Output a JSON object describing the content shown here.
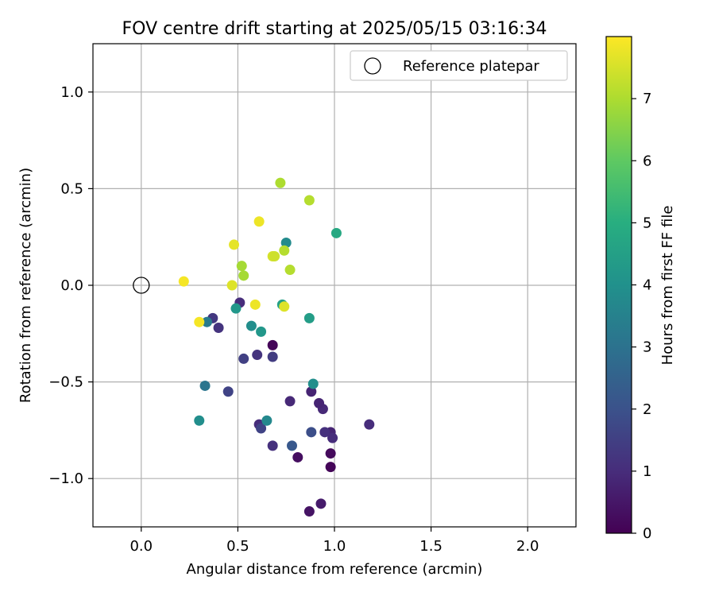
{
  "chart_data": {
    "type": "scatter",
    "title": "FOV centre drift starting at 2025/05/15 03:16:34",
    "xlabel": "Angular distance from reference (arcmin)",
    "ylabel": "Rotation from reference (arcmin)",
    "xlim": [
      -0.25,
      2.25
    ],
    "ylim": [
      -1.25,
      1.25
    ],
    "xticks": [
      0.0,
      0.5,
      1.0,
      1.5,
      2.0
    ],
    "xtick_labels": [
      "0.0",
      "0.5",
      "1.0",
      "1.5",
      "2.0"
    ],
    "yticks": [
      -1.0,
      -0.5,
      0.0,
      0.5,
      1.0
    ],
    "ytick_labels": [
      "−1.0",
      "−0.5",
      "0.0",
      "0.5",
      "1.0"
    ],
    "grid": true,
    "legend": {
      "placement": "top-right",
      "entries": [
        "Reference platepar"
      ]
    },
    "colorbar": {
      "label": "Hours from first FF file",
      "colormap": "viridis",
      "range": [
        0,
        8
      ],
      "ticks": [
        0,
        1,
        2,
        3,
        4,
        5,
        6,
        7
      ],
      "tick_labels": [
        "0",
        "1",
        "2",
        "3",
        "4",
        "5",
        "6",
        "7"
      ]
    },
    "reference_point": {
      "x": 0.0,
      "y": 0.0,
      "label": "Reference platepar"
    },
    "points": [
      {
        "x": 0.68,
        "y": -0.31,
        "h": 0.1
      },
      {
        "x": 0.87,
        "y": -1.17,
        "h": 0.4
      },
      {
        "x": 0.93,
        "y": -1.13,
        "h": 0.6
      },
      {
        "x": 0.98,
        "y": -0.94,
        "h": 0.1
      },
      {
        "x": 0.98,
        "y": -0.87,
        "h": 0.2
      },
      {
        "x": 0.81,
        "y": -0.89,
        "h": 0.3
      },
      {
        "x": 0.98,
        "y": -0.76,
        "h": 0.8
      },
      {
        "x": 0.99,
        "y": -0.79,
        "h": 1.0
      },
      {
        "x": 0.95,
        "y": -0.76,
        "h": 1.1
      },
      {
        "x": 1.18,
        "y": -0.72,
        "h": 1.0
      },
      {
        "x": 0.94,
        "y": -0.64,
        "h": 0.9
      },
      {
        "x": 0.92,
        "y": -0.61,
        "h": 0.8
      },
      {
        "x": 0.88,
        "y": -0.55,
        "h": 0.8
      },
      {
        "x": 0.77,
        "y": -0.6,
        "h": 0.9
      },
      {
        "x": 0.61,
        "y": -0.72,
        "h": 1.0
      },
      {
        "x": 0.62,
        "y": -0.74,
        "h": 1.6
      },
      {
        "x": 0.68,
        "y": -0.83,
        "h": 1.1
      },
      {
        "x": 0.78,
        "y": -0.83,
        "h": 2.2
      },
      {
        "x": 0.88,
        "y": -0.76,
        "h": 1.9
      },
      {
        "x": 0.45,
        "y": -0.55,
        "h": 1.6
      },
      {
        "x": 0.53,
        "y": -0.38,
        "h": 1.5
      },
      {
        "x": 0.6,
        "y": -0.36,
        "h": 1.2
      },
      {
        "x": 0.68,
        "y": -0.37,
        "h": 1.4
      },
      {
        "x": 0.37,
        "y": -0.17,
        "h": 1.3
      },
      {
        "x": 0.4,
        "y": -0.22,
        "h": 1.2
      },
      {
        "x": 0.51,
        "y": -0.09,
        "h": 1.0
      },
      {
        "x": 0.34,
        "y": -0.19,
        "h": 3.3
      },
      {
        "x": 0.33,
        "y": -0.52,
        "h": 3.1
      },
      {
        "x": 0.3,
        "y": -0.7,
        "h": 3.9
      },
      {
        "x": 0.65,
        "y": -0.7,
        "h": 3.7
      },
      {
        "x": 0.89,
        "y": -0.51,
        "h": 3.9
      },
      {
        "x": 0.87,
        "y": -0.17,
        "h": 4.4
      },
      {
        "x": 0.57,
        "y": -0.21,
        "h": 3.9
      },
      {
        "x": 0.62,
        "y": -0.24,
        "h": 4.2
      },
      {
        "x": 0.49,
        "y": -0.12,
        "h": 4.2
      },
      {
        "x": 0.73,
        "y": -0.1,
        "h": 4.5
      },
      {
        "x": 0.75,
        "y": 0.22,
        "h": 3.8
      },
      {
        "x": 1.01,
        "y": 0.27,
        "h": 4.8
      },
      {
        "x": 0.72,
        "y": 0.53,
        "h": 7.0
      },
      {
        "x": 0.87,
        "y": 0.44,
        "h": 7.1
      },
      {
        "x": 0.74,
        "y": 0.18,
        "h": 7.1
      },
      {
        "x": 0.77,
        "y": 0.08,
        "h": 7.1
      },
      {
        "x": 0.52,
        "y": 0.1,
        "h": 6.9
      },
      {
        "x": 0.53,
        "y": 0.05,
        "h": 6.9
      },
      {
        "x": 0.68,
        "y": 0.15,
        "h": 7.5
      },
      {
        "x": 0.69,
        "y": 0.15,
        "h": 7.4
      },
      {
        "x": 0.61,
        "y": 0.33,
        "h": 7.8
      },
      {
        "x": 0.48,
        "y": 0.21,
        "h": 7.7
      },
      {
        "x": 0.47,
        "y": 0.0,
        "h": 7.6
      },
      {
        "x": 0.22,
        "y": 0.02,
        "h": 7.9
      },
      {
        "x": 0.59,
        "y": -0.1,
        "h": 7.8
      },
      {
        "x": 0.74,
        "y": -0.11,
        "h": 7.6
      },
      {
        "x": 0.3,
        "y": -0.19,
        "h": 7.9
      }
    ]
  }
}
